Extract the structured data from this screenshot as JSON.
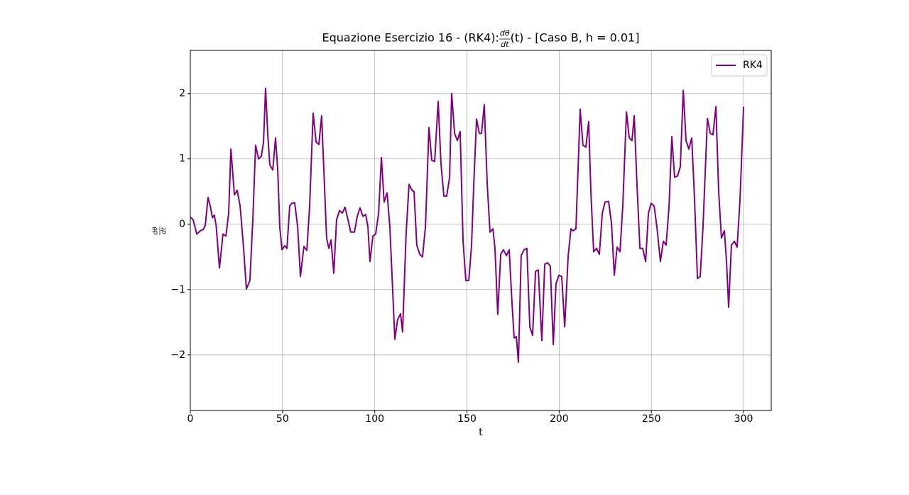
{
  "chart_data": {
    "type": "line",
    "title": [
      "Equazione Esercizio 16 - (RK4): ",
      "dθ",
      "dt",
      "(t) - [Caso B, h = 0.01]"
    ],
    "xlabel": "t",
    "ylabel": [
      "dθ",
      "dt"
    ],
    "xlim": [
      0,
      315
    ],
    "ylim": [
      -2.85,
      2.66
    ],
    "xticks": [
      0,
      50,
      100,
      150,
      200,
      250,
      300
    ],
    "yticks": [
      {
        "value": -2,
        "label": "−2"
      },
      {
        "value": -1,
        "label": "−1"
      },
      0,
      1,
      2
    ],
    "grid": true,
    "legend": "upper right",
    "series": [
      {
        "name": "RK4",
        "color": "#800080",
        "x": [
          0,
          1.5,
          3.5,
          5.4,
          7,
          8.1,
          9.6,
          10.8,
          12,
          13,
          14,
          15.8,
          17.7,
          19.3,
          20.8,
          22,
          23.9,
          25.4,
          27,
          28.9,
          30.4,
          32.3,
          33.9,
          35.4,
          37,
          38.5,
          39.7,
          40.8,
          42,
          43.1,
          44.7,
          46.2,
          47.4,
          48.5,
          49.7,
          51.2,
          52.4,
          53.9,
          55,
          56.6,
          58.2,
          59.7,
          61.6,
          63.2,
          64.7,
          66.6,
          68.2,
          69.7,
          71.2,
          72.4,
          73.9,
          75.1,
          76.3,
          77.8,
          79.3,
          80.9,
          82.4,
          83.9,
          85.5,
          87,
          89,
          90.5,
          92,
          93.6,
          95.1,
          96.3,
          97.4,
          99,
          100.5,
          102.1,
          103.6,
          105.1,
          106.7,
          108.2,
          110.9,
          112.4,
          114,
          115.1,
          117,
          118.6,
          120.2,
          121.3,
          122.8,
          124.4,
          125.9,
          127.5,
          129.4,
          130.9,
          132.5,
          134.4,
          135.9,
          137.5,
          139,
          140.6,
          141.7,
          143.3,
          144.8,
          146.3,
          147.9,
          149.4,
          151,
          152.5,
          153.7,
          155.2,
          156.7,
          157.9,
          159.4,
          161,
          162.5,
          164.1,
          165.2,
          166.7,
          168.3,
          169.8,
          171.4,
          172.9,
          174.5,
          175.6,
          176.8,
          177.9,
          179.4,
          181,
          182.5,
          184.1,
          185.6,
          187.2,
          188.7,
          190.6,
          192.2,
          193.7,
          195.2,
          196.8,
          198.3,
          199.9,
          201.4,
          203,
          204.9,
          206.4,
          207.6,
          209.1,
          211.4,
          212.9,
          214.5,
          216,
          217.2,
          218.7,
          220.3,
          221.8,
          223.4,
          224.9,
          226.8,
          228.4,
          229.9,
          231.4,
          233,
          234.5,
          236.5,
          238,
          239.5,
          240.7,
          242.2,
          243.8,
          245.3,
          246.9,
          248.4,
          249.9,
          251.5,
          253,
          254.9,
          256.5,
          258,
          259.6,
          261.1,
          262.6,
          264.2,
          265.7,
          267.3,
          268.8,
          270.3,
          271.9,
          273.4,
          275,
          276.5,
          278,
          280.4,
          281.9,
          283.4,
          285,
          286.5,
          288,
          289.6,
          290.8,
          291.9,
          293.4,
          295,
          296.5,
          298.1,
          300
        ],
        "values": [
          0.11,
          0.07,
          -0.15,
          -0.1,
          -0.08,
          -0.02,
          0.41,
          0.28,
          0.1,
          0.14,
          -0.02,
          -0.67,
          -0.15,
          -0.18,
          0.17,
          1.15,
          0.45,
          0.52,
          0.28,
          -0.37,
          -0.99,
          -0.86,
          0.07,
          1.21,
          1.0,
          1.04,
          1.26,
          2.08,
          1.37,
          0.91,
          0.83,
          1.32,
          0.83,
          -0.04,
          -0.39,
          -0.33,
          -0.37,
          0.28,
          0.32,
          0.33,
          -0.04,
          -0.8,
          -0.34,
          -0.4,
          0.28,
          1.7,
          1.26,
          1.22,
          1.66,
          0.83,
          -0.21,
          -0.37,
          -0.24,
          -0.75,
          0.07,
          0.21,
          0.17,
          0.26,
          0.07,
          -0.12,
          -0.12,
          0.12,
          0.25,
          0.12,
          0.15,
          -0.04,
          -0.57,
          -0.18,
          -0.15,
          0.17,
          1.02,
          0.34,
          0.48,
          -0.04,
          -1.76,
          -1.46,
          -1.37,
          -1.65,
          -0.15,
          0.61,
          0.52,
          0.5,
          -0.32,
          -0.46,
          -0.5,
          -0.04,
          1.48,
          0.98,
          0.96,
          1.88,
          0.93,
          0.43,
          0.43,
          0.72,
          2.0,
          1.39,
          1.28,
          1.42,
          -0.26,
          -0.86,
          -0.86,
          -0.32,
          0.61,
          1.61,
          1.39,
          1.39,
          1.83,
          0.61,
          -0.12,
          -0.07,
          -0.37,
          -1.38,
          -0.46,
          -0.39,
          -0.48,
          -0.39,
          -1.24,
          -1.74,
          -1.72,
          -2.11,
          -0.48,
          -0.39,
          -0.37,
          -1.57,
          -1.7,
          -0.72,
          -0.7,
          -1.78,
          -0.61,
          -0.59,
          -0.64,
          -1.84,
          -0.91,
          -0.78,
          -0.8,
          -1.57,
          -0.48,
          -0.07,
          -0.1,
          -0.07,
          1.76,
          1.21,
          1.18,
          1.57,
          0.5,
          -0.42,
          -0.37,
          -0.46,
          0.17,
          0.34,
          0.35,
          0.01,
          -0.78,
          -0.35,
          -0.42,
          0.28,
          1.72,
          1.32,
          1.28,
          1.66,
          0.61,
          -0.37,
          -0.37,
          -0.57,
          0.17,
          0.32,
          0.28,
          -0.04,
          -0.57,
          -0.26,
          -0.32,
          0.28,
          1.34,
          0.72,
          0.74,
          0.88,
          2.05,
          1.28,
          1.15,
          1.32,
          0.39,
          -0.83,
          -0.8,
          -0.04,
          1.62,
          1.39,
          1.37,
          1.8,
          0.5,
          -0.21,
          -0.1,
          -0.59,
          -1.27,
          -0.32,
          -0.26,
          -0.35,
          0.39,
          1.8
        ]
      }
    ]
  }
}
